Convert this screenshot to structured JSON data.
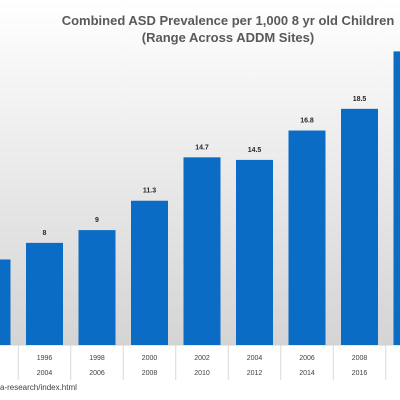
{
  "chart_data": {
    "type": "bar",
    "title": "Combined ASD Prevalence per 1,000 8 yr old Children",
    "subtitle": "(Range Across ADDM Sites)",
    "categories_top": [
      "",
      "1996",
      "1998",
      "2000",
      "2002",
      "2004",
      "2006",
      "2008",
      ""
    ],
    "categories_bottom": [
      "",
      "2004",
      "2006",
      "2008",
      "2010",
      "2012",
      "2014",
      "2016",
      ""
    ],
    "values": [
      6.7,
      8,
      9,
      11.3,
      14.7,
      14.5,
      16.8,
      18.5,
      23
    ],
    "data_labels": [
      "",
      "8",
      "9",
      "11.3",
      "14.7",
      "14.5",
      "16.8",
      "18.5",
      ""
    ],
    "ylim": [
      0,
      23.5
    ],
    "grid": false,
    "xlabel": "",
    "ylabel": ""
  },
  "colors": {
    "bar": "#0a6cc4",
    "background_top": "#ffffff",
    "background_bottom": "#d4d4d4"
  },
  "source_note": "a-research/index.html"
}
